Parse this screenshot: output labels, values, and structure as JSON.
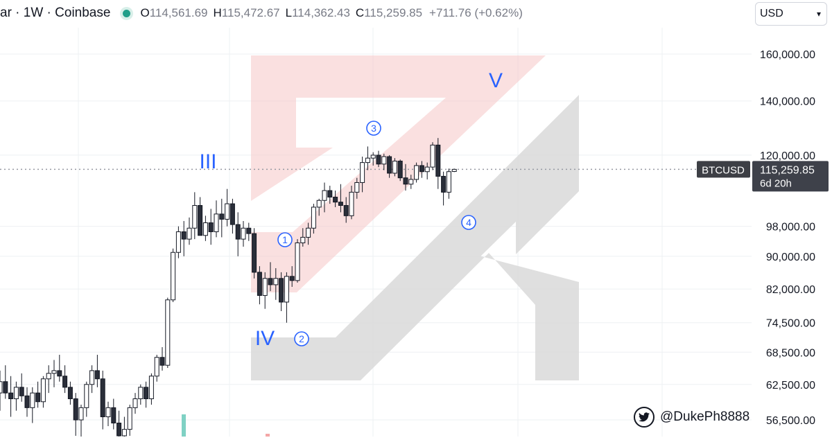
{
  "header": {
    "symbol_text": "ar · 1W · Coinbase",
    "ohlc": [
      {
        "key": "O",
        "value": "114,561.69"
      },
      {
        "key": "H",
        "value": "115,472.67"
      },
      {
        "key": "L",
        "value": "114,362.43"
      },
      {
        "key": "C",
        "value": "115,259.85"
      }
    ],
    "change": "+711.76 (+0.62%)",
    "status_color": "#1f9e89"
  },
  "currency": {
    "selected": "USD"
  },
  "price_label": {
    "symbol": "BTCUSD",
    "price": "115,259.85",
    "countdown": "6d 20h"
  },
  "watermark_handle": "@DukePh8888",
  "icons": {
    "status": "status-dot-icon",
    "currency": "chevron-down-icon",
    "social": "twitter-icon"
  },
  "colors": {
    "candle_body": "#ffffff",
    "candle_outline": "#131722",
    "wave_labels": "#2962ff",
    "logo_red": "#f5c6c6",
    "logo_gray": "#d9d9d9",
    "price_label_bg": "#131722"
  },
  "chart_data": {
    "type": "candlestick",
    "y_ticks": [
      "160,000.00",
      "140,000.00",
      "120,000.00",
      "98,000.00",
      "90,000.00",
      "82,000.00",
      "74,500.00",
      "68,500.00",
      "62,500.00",
      "56,500.00"
    ],
    "y_tick_values": [
      160000,
      140000,
      120000,
      98000,
      90000,
      82000,
      74500,
      68500,
      62500,
      56500
    ],
    "scale": "log",
    "last_price": 115259.85,
    "grid": true,
    "candles": [
      [
        61000,
        65000,
        58000,
        63000
      ],
      [
        63000,
        66000,
        60000,
        61000
      ],
      [
        61000,
        64000,
        57000,
        60000
      ],
      [
        60000,
        63000,
        58000,
        62000
      ],
      [
        62000,
        64500,
        59500,
        60500
      ],
      [
        60500,
        62000,
        57000,
        58500
      ],
      [
        58500,
        62000,
        56000,
        61000
      ],
      [
        61000,
        63000,
        58500,
        59500
      ],
      [
        59500,
        64000,
        58500,
        63500
      ],
      [
        63500,
        66000,
        61000,
        64500
      ],
      [
        64500,
        67000,
        62000,
        65000
      ],
      [
        65000,
        68000,
        63000,
        64000
      ],
      [
        64000,
        66000,
        61000,
        62000
      ],
      [
        62000,
        63000,
        59000,
        60000
      ],
      [
        60000,
        61000,
        54000,
        56500
      ],
      [
        56500,
        59000,
        53500,
        58500
      ],
      [
        58500,
        63000,
        57000,
        62500
      ],
      [
        62500,
        66000,
        61000,
        65000
      ],
      [
        65000,
        68000,
        62000,
        63500
      ],
      [
        63500,
        65000,
        55000,
        57000
      ],
      [
        57000,
        59500,
        55500,
        58500
      ],
      [
        58500,
        60000,
        55000,
        56000
      ],
      [
        56000,
        58000,
        52500,
        54000
      ],
      [
        54000,
        57000,
        53000,
        55000
      ],
      [
        55000,
        59000,
        54000,
        58500
      ],
      [
        58500,
        61000,
        57500,
        60000
      ],
      [
        60000,
        62500,
        59000,
        62000
      ],
      [
        62000,
        63000,
        58500,
        60000
      ],
      [
        60000,
        64500,
        59000,
        64000
      ],
      [
        64000,
        68000,
        63000,
        67500
      ],
      [
        67500,
        69500,
        65000,
        66000
      ],
      [
        66000,
        80000,
        65500,
        79500
      ],
      [
        79500,
        92000,
        79000,
        91000
      ],
      [
        91000,
        98000,
        89500,
        96500
      ],
      [
        96500,
        99500,
        90000,
        94500
      ],
      [
        94500,
        100500,
        93000,
        97500
      ],
      [
        97500,
        108000,
        94500,
        104000
      ],
      [
        104000,
        106500,
        96000,
        95500
      ],
      [
        95500,
        101000,
        94000,
        99000
      ],
      [
        99000,
        103000,
        93000,
        96500
      ],
      [
        96500,
        105500,
        95000,
        101500
      ],
      [
        101500,
        106000,
        95000,
        100000
      ],
      [
        100000,
        109000,
        98000,
        104500
      ],
      [
        104500,
        106000,
        96000,
        98500
      ],
      [
        98500,
        102000,
        90000,
        94500
      ],
      [
        94500,
        99500,
        92500,
        97500
      ],
      [
        97500,
        99000,
        94000,
        96000
      ],
      [
        96000,
        97500,
        84500,
        86000
      ],
      [
        86000,
        87500,
        78500,
        80500
      ],
      [
        80500,
        86000,
        77500,
        84500
      ],
      [
        84500,
        88500,
        81500,
        83000
      ],
      [
        83000,
        87000,
        79500,
        84500
      ],
      [
        84500,
        86000,
        77000,
        79000
      ],
      [
        79000,
        86000,
        74500,
        85000
      ],
      [
        85000,
        87500,
        82500,
        84000
      ],
      [
        84000,
        94500,
        83500,
        93500
      ],
      [
        93500,
        97500,
        92500,
        95000
      ],
      [
        95000,
        99000,
        93000,
        97500
      ],
      [
        97500,
        104500,
        96000,
        103500
      ],
      [
        103500,
        106000,
        101000,
        105500
      ],
      [
        105500,
        111000,
        102000,
        108500
      ],
      [
        108500,
        110000,
        104500,
        106500
      ],
      [
        106500,
        108500,
        103500,
        105000
      ],
      [
        105000,
        110500,
        102000,
        104000
      ],
      [
        104000,
        106500,
        99000,
        101000
      ],
      [
        101000,
        110000,
        100000,
        108000
      ],
      [
        108000,
        112500,
        106000,
        111000
      ],
      [
        111000,
        119500,
        108000,
        117500
      ],
      [
        117500,
        123000,
        115000,
        119000
      ],
      [
        119000,
        121000,
        116500,
        120000
      ],
      [
        120000,
        121500,
        116000,
        117000
      ],
      [
        117000,
        120500,
        115000,
        119500
      ],
      [
        119500,
        120000,
        112500,
        114000
      ],
      [
        114000,
        119000,
        113000,
        118000
      ],
      [
        118000,
        118500,
        111500,
        112500
      ],
      [
        112500,
        117000,
        108500,
        110500
      ],
      [
        110500,
        113500,
        109000,
        112000
      ],
      [
        112000,
        117500,
        111000,
        116500
      ],
      [
        116500,
        118000,
        112500,
        114500
      ],
      [
        114500,
        117500,
        112000,
        116000
      ],
      [
        116000,
        124500,
        115000,
        123500
      ],
      [
        123500,
        126000,
        109000,
        113000
      ],
      [
        113000,
        114500,
        104000,
        108000
      ],
      [
        108000,
        115500,
        106000,
        114500
      ],
      [
        114561.69,
        115472.67,
        114362.43,
        115259.85
      ]
    ],
    "wave_labels": [
      {
        "text": "III",
        "style": "roman"
      },
      {
        "text": "IV",
        "style": "roman"
      },
      {
        "text": "V",
        "style": "roman"
      },
      {
        "text": "1",
        "style": "circled"
      },
      {
        "text": "2",
        "style": "circled"
      },
      {
        "text": "3",
        "style": "circled"
      },
      {
        "text": "4",
        "style": "circled"
      }
    ]
  }
}
